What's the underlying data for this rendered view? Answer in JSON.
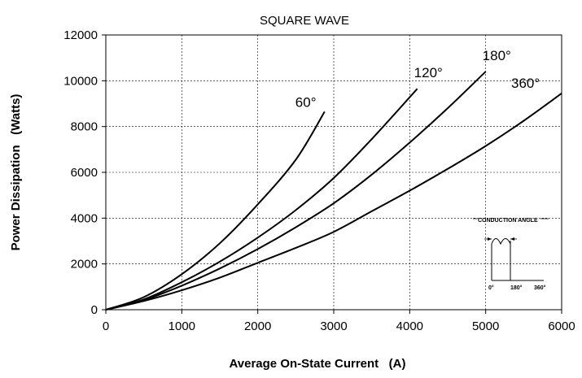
{
  "chart_data": {
    "type": "line",
    "title": "SQUARE WAVE",
    "xlabel": "Average On-State Current   (A)",
    "ylabel": "Power Dissipation   (Watts)",
    "xlim": [
      0,
      6000
    ],
    "ylim": [
      0,
      12000
    ],
    "xticks": [
      0,
      1000,
      2000,
      3000,
      4000,
      5000,
      6000
    ],
    "yticks": [
      0,
      2000,
      4000,
      6000,
      8000,
      10000,
      12000
    ],
    "grid": true,
    "series": [
      {
        "name": "60°",
        "points": [
          [
            0,
            0
          ],
          [
            500,
            550
          ],
          [
            1000,
            1550
          ],
          [
            1500,
            2900
          ],
          [
            2000,
            4600
          ],
          [
            2500,
            6550
          ],
          [
            2880,
            8650
          ]
        ]
      },
      {
        "name": "120°",
        "points": [
          [
            0,
            0
          ],
          [
            500,
            450
          ],
          [
            1000,
            1200
          ],
          [
            1500,
            2100
          ],
          [
            2000,
            3150
          ],
          [
            2500,
            4350
          ],
          [
            3000,
            5750
          ],
          [
            3500,
            7450
          ],
          [
            4100,
            9650
          ]
        ]
      },
      {
        "name": "180°",
        "points": [
          [
            0,
            0
          ],
          [
            500,
            420
          ],
          [
            1000,
            1050
          ],
          [
            1500,
            1800
          ],
          [
            2000,
            2650
          ],
          [
            2500,
            3600
          ],
          [
            3000,
            4650
          ],
          [
            3500,
            5900
          ],
          [
            4000,
            7300
          ],
          [
            4500,
            8800
          ],
          [
            5000,
            10400
          ]
        ]
      },
      {
        "name": "360°",
        "points": [
          [
            0,
            0
          ],
          [
            500,
            380
          ],
          [
            1000,
            850
          ],
          [
            1500,
            1400
          ],
          [
            2000,
            2050
          ],
          [
            2500,
            2700
          ],
          [
            3000,
            3400
          ],
          [
            3500,
            4300
          ],
          [
            4000,
            5200
          ],
          [
            4500,
            6150
          ],
          [
            5000,
            7150
          ],
          [
            5500,
            8250
          ],
          [
            6000,
            9450
          ]
        ]
      }
    ],
    "inset": {
      "title": "CONDUCTION ANGLE",
      "tick_labels": [
        "0°",
        "180°",
        "360°"
      ]
    }
  }
}
